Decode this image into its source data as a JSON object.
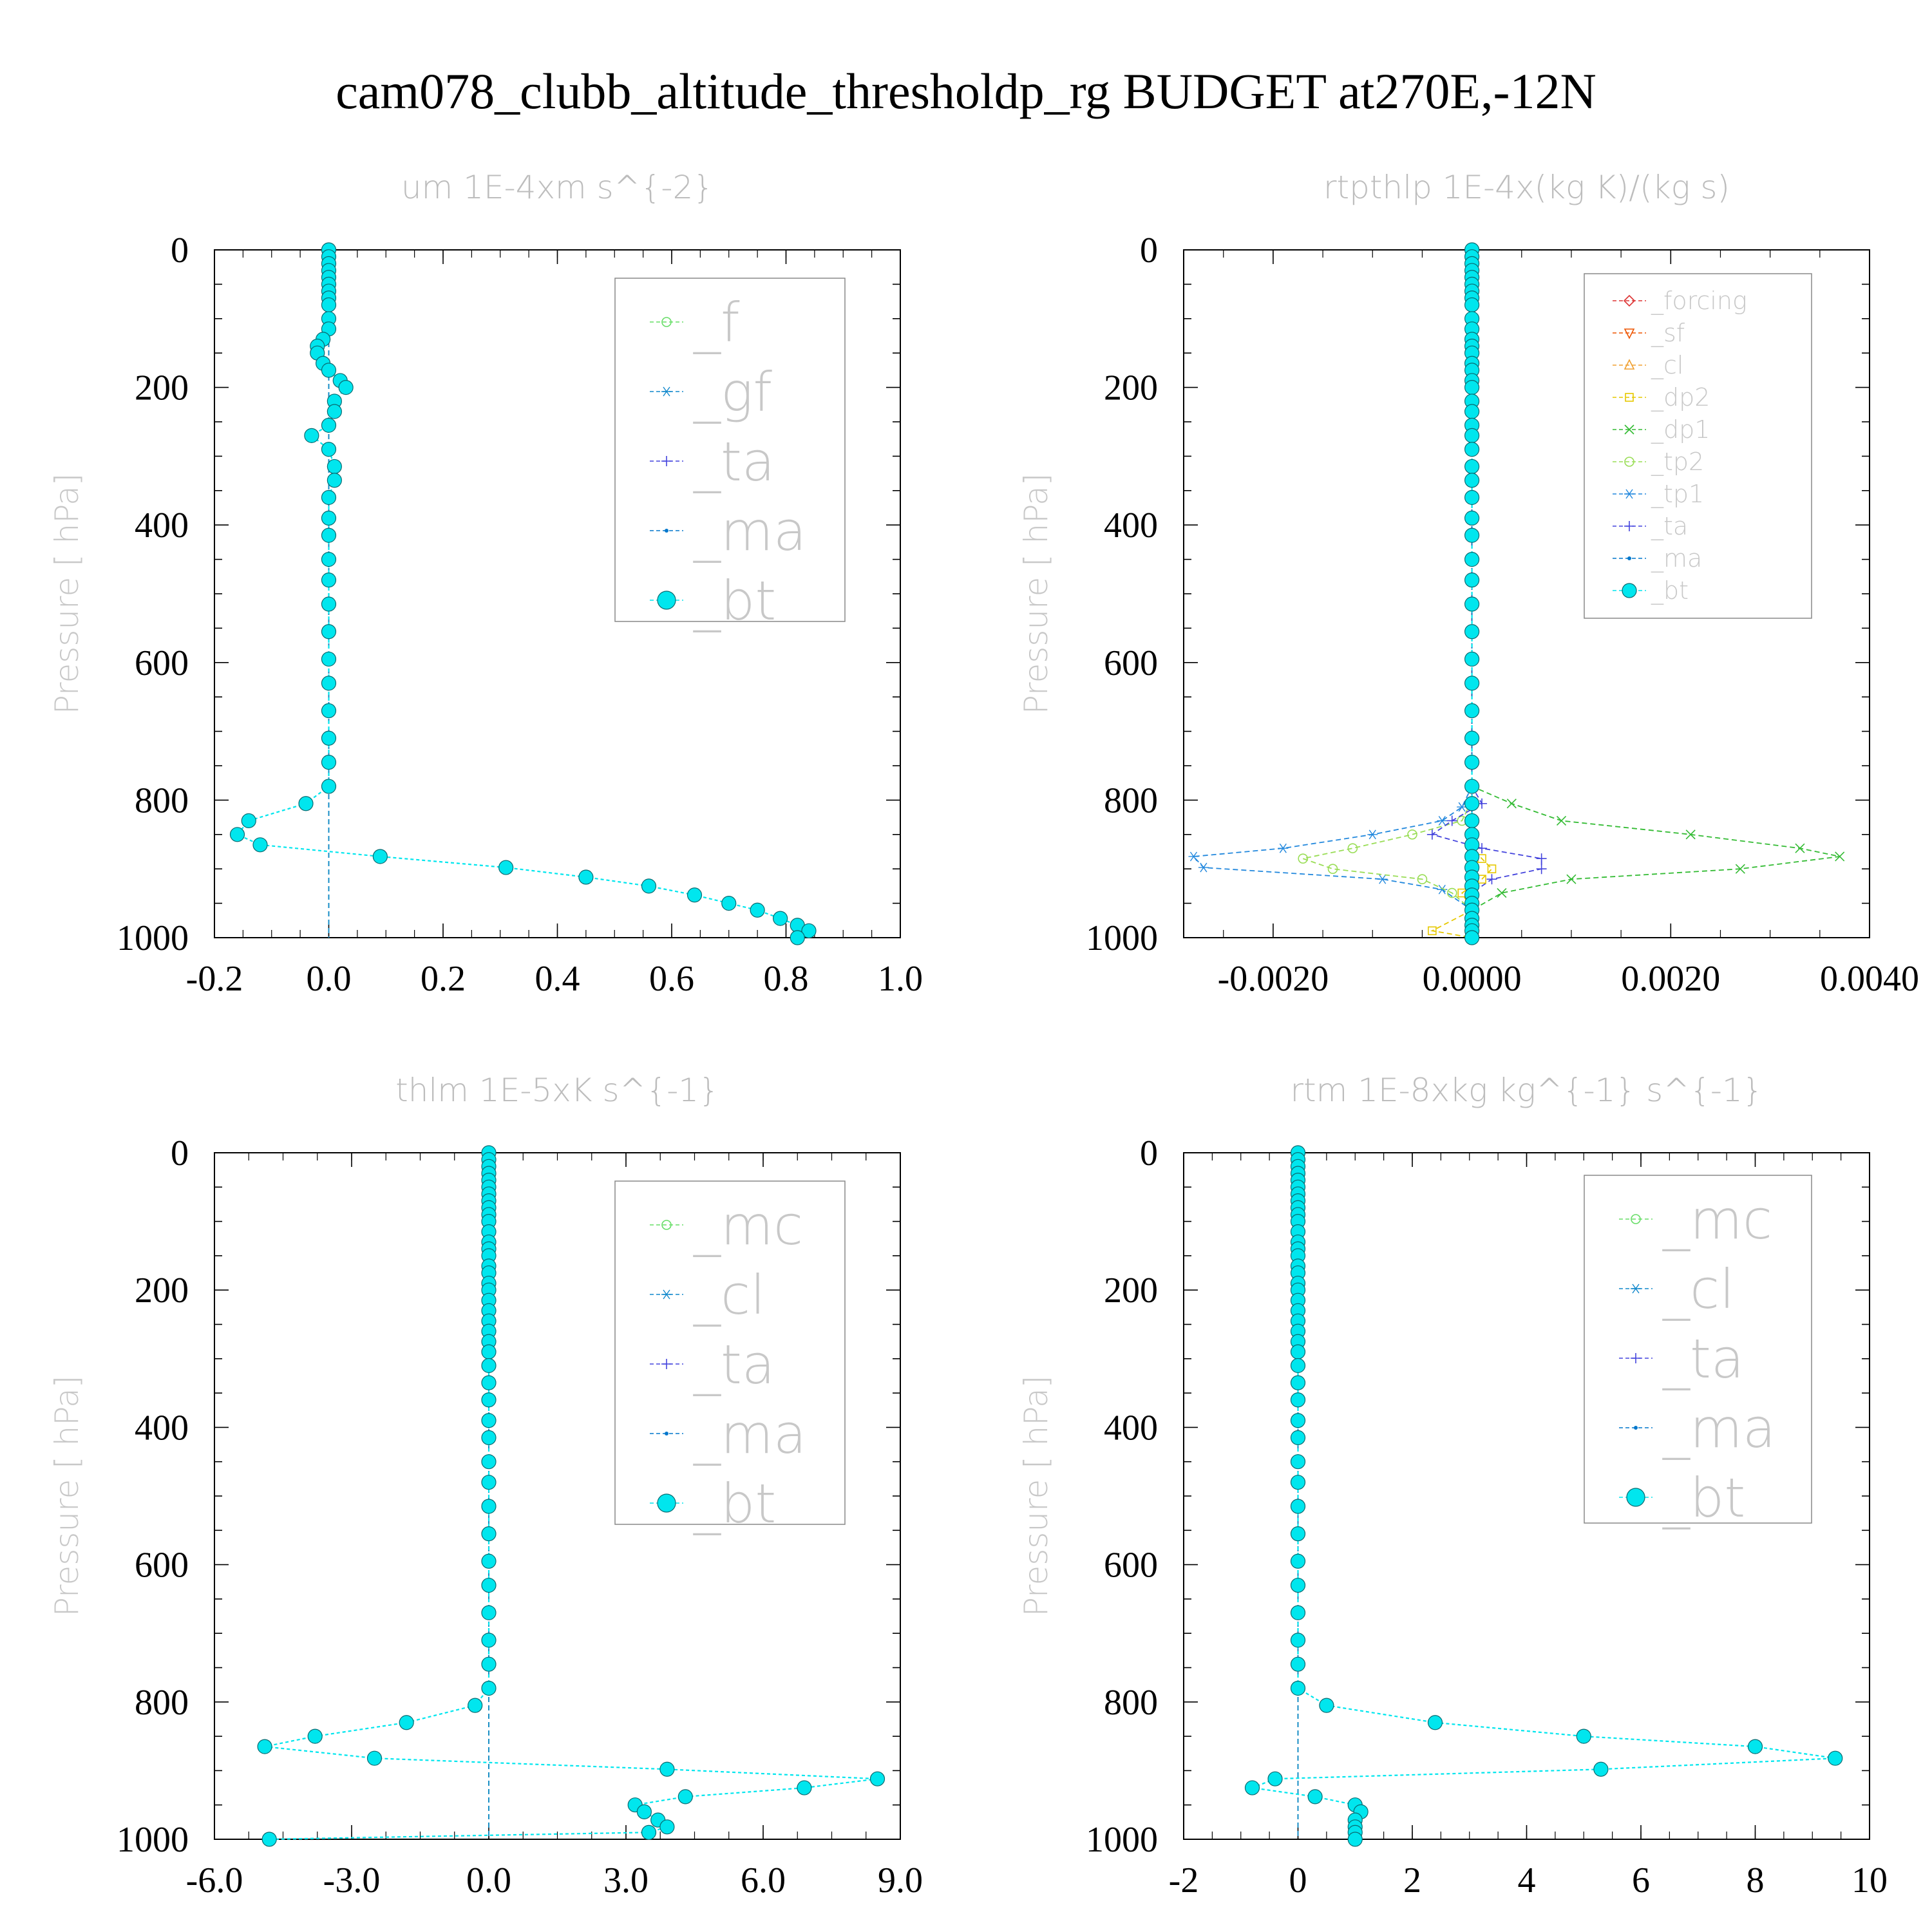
{
  "figure_title": "cam078_clubb_altitude_thresholdp_rg  BUDGET at270E,-12N",
  "colors": {
    "f": "#66dd66",
    "gf": "#1188cc",
    "ta": "#4444dd",
    "ma": "#0077cc",
    "bt": "#00e6ee",
    "mc": "#66dd66",
    "cl": "#1188cc",
    "forcing": "#dd3333",
    "sf": "#ee5500",
    "cl_small": "#f0a030",
    "dp2": "#e6c800",
    "dp1": "#33bb33",
    "tp2": "#99dd55",
    "tp1": "#2288dd"
  },
  "chart_data": [
    {
      "type": "line",
      "title": "um  1E-4xm s^{-2}",
      "ylabel": "Pressure [ hPa]",
      "xlim": [
        -0.2,
        1.0
      ],
      "ylim": [
        1000,
        0
      ],
      "xticks": [
        "-0.2",
        "0.0",
        "0.2",
        "0.4",
        "0.6",
        "0.8",
        "1.0"
      ],
      "yticks": [
        "0",
        "200",
        "400",
        "600",
        "800",
        "1000"
      ],
      "legend": [
        "_f",
        "_gf",
        "_ta",
        "_ma",
        "_bt"
      ],
      "series": [
        {
          "name": "_bt",
          "key": "bt",
          "p": [
            0,
            10,
            20,
            30,
            40,
            50,
            60,
            70,
            80,
            100,
            115,
            130,
            140,
            150,
            165,
            175,
            190,
            200,
            220,
            235,
            255,
            270,
            290,
            315,
            335,
            360,
            390,
            415,
            450,
            480,
            515,
            555,
            595,
            630,
            670,
            710,
            745,
            780,
            805,
            830,
            850,
            865,
            882,
            898,
            912,
            925,
            938,
            950,
            960,
            972,
            982,
            990,
            1000
          ],
          "x": [
            0,
            0,
            0,
            0,
            0,
            0,
            0,
            0,
            0,
            0,
            0,
            -0.01,
            -0.02,
            -0.02,
            -0.01,
            0,
            0.02,
            0.03,
            0.01,
            0.01,
            0,
            -0.03,
            0,
            0.01,
            0.01,
            0,
            0,
            0,
            0,
            0,
            0,
            0,
            0,
            0,
            0,
            0,
            0,
            0,
            -0.04,
            -0.14,
            -0.16,
            -0.12,
            0.09,
            0.31,
            0.45,
            0.56,
            0.64,
            0.7,
            0.75,
            0.79,
            0.82,
            0.84,
            0.82
          ]
        },
        {
          "name": "_ma",
          "key": "ma",
          "p": [
            0,
            990,
            1000
          ],
          "x": [
            0,
            0,
            0
          ]
        },
        {
          "name": "_ta",
          "key": "ta",
          "p": [
            0,
            990,
            1000
          ],
          "x": [
            0,
            0,
            0
          ]
        },
        {
          "name": "_f",
          "key": "f",
          "p": [
            0,
            1000
          ],
          "x": [
            0,
            0
          ]
        },
        {
          "name": "_gf",
          "key": "gf",
          "p": [
            0,
            1000
          ],
          "x": [
            0,
            0
          ]
        }
      ]
    },
    {
      "type": "line",
      "title": "rtpthlp  1E-4x(kg K)/(kg s)",
      "ylabel": "Pressure [ hPa]",
      "xlim": [
        -0.0029,
        0.004
      ],
      "ylim": [
        1000,
        0
      ],
      "xticks": [
        "-0.0020",
        "0.0000",
        "0.0020",
        "0.0040"
      ],
      "yticks": [
        "0",
        "200",
        "400",
        "600",
        "800",
        "1000"
      ],
      "legend": [
        "_forcing",
        "_sf",
        "_cl",
        "_dp2",
        "_dp1",
        "_tp2",
        "_tp1",
        "_ta",
        "_ma",
        "_bt"
      ],
      "series": [
        {
          "name": "_dp1",
          "key": "dp1",
          "p": [
            0,
            780,
            805,
            830,
            850,
            870,
            882,
            900,
            915,
            935,
            960,
            1000
          ],
          "x": [
            0,
            0,
            0.0004,
            0.0009,
            0.0022,
            0.0033,
            0.0037,
            0.0027,
            0.001,
            0.0003,
            0,
            0
          ]
        },
        {
          "name": "_tp1",
          "key": "tp1",
          "p": [
            0,
            780,
            810,
            830,
            850,
            870,
            882,
            898,
            915,
            930,
            960,
            1000
          ],
          "x": [
            0,
            0,
            -0.0001,
            -0.0003,
            -0.001,
            -0.0019,
            -0.0028,
            -0.0027,
            -0.0009,
            -0.0003,
            0,
            0
          ]
        },
        {
          "name": "_tp2",
          "key": "tp2",
          "p": [
            0,
            800,
            830,
            850,
            870,
            885,
            900,
            915,
            935,
            960,
            1000
          ],
          "x": [
            0,
            0,
            -0.0001,
            -0.0006,
            -0.0012,
            -0.0017,
            -0.0014,
            -0.0005,
            -0.0002,
            0,
            0
          ]
        },
        {
          "name": "_ta",
          "key": "ta",
          "p": [
            0,
            780,
            805,
            830,
            850,
            870,
            885,
            900,
            915,
            935,
            960,
            1000
          ],
          "x": [
            0,
            0,
            0.0001,
            -0.0002,
            -0.0004,
            0.0001,
            0.0007,
            0.0007,
            0.0002,
            0,
            0,
            0
          ]
        },
        {
          "name": "_dp2",
          "key": "dp2",
          "p": [
            0,
            870,
            885,
            900,
            915,
            935,
            960,
            990,
            1000
          ],
          "x": [
            0,
            0,
            0.0001,
            0.0002,
            0.0001,
            -0.0001,
            0,
            -0.0004,
            0
          ]
        },
        {
          "name": "_cl",
          "key": "cl_small",
          "p": [
            0,
            1000
          ],
          "x": [
            0,
            0
          ]
        },
        {
          "name": "_sf",
          "key": "sf",
          "p": [
            0,
            1000
          ],
          "x": [
            0,
            0
          ]
        },
        {
          "name": "_forcing",
          "key": "forcing",
          "p": [
            0,
            1000
          ],
          "x": [
            0,
            0
          ]
        },
        {
          "name": "_ma",
          "key": "ma",
          "p": [
            0,
            1000
          ],
          "x": [
            0,
            0
          ]
        },
        {
          "name": "_bt",
          "key": "bt",
          "p": [
            0,
            10,
            20,
            30,
            40,
            50,
            60,
            70,
            80,
            100,
            115,
            130,
            140,
            150,
            165,
            175,
            190,
            200,
            220,
            235,
            255,
            270,
            290,
            315,
            335,
            360,
            390,
            415,
            450,
            480,
            515,
            555,
            595,
            630,
            670,
            710,
            745,
            780,
            805,
            830,
            850,
            865,
            882,
            898,
            912,
            925,
            938,
            950,
            960,
            972,
            982,
            990,
            1000
          ],
          "x": [
            0,
            0,
            0,
            0,
            0,
            0,
            0,
            0,
            0,
            0,
            0,
            0,
            0,
            0,
            0,
            0,
            0,
            0,
            0,
            0,
            0,
            0,
            0,
            0,
            0,
            0,
            0,
            0,
            0,
            0,
            0,
            0,
            0,
            0,
            0,
            0,
            0,
            0,
            0,
            0,
            0,
            0,
            0,
            0,
            0,
            0,
            0,
            0,
            0,
            0,
            0,
            0,
            0
          ]
        }
      ]
    },
    {
      "type": "line",
      "title": "thlm  1E-5xK s^{-1}",
      "ylabel": "Pressure [ hPa]",
      "xlim": [
        -6.0,
        9.0
      ],
      "ylim": [
        1000,
        0
      ],
      "xticks": [
        "-6.0",
        "-3.0",
        "0.0",
        "3.0",
        "6.0",
        "9.0"
      ],
      "yticks": [
        "0",
        "200",
        "400",
        "600",
        "800",
        "1000"
      ],
      "legend": [
        "_mc",
        "_cl",
        "_ta",
        "_ma",
        "_bt"
      ],
      "series": [
        {
          "name": "_bt",
          "key": "bt",
          "p": [
            0,
            10,
            20,
            30,
            40,
            50,
            60,
            70,
            80,
            90,
            100,
            115,
            130,
            140,
            150,
            165,
            175,
            190,
            200,
            215,
            230,
            245,
            260,
            275,
            290,
            310,
            335,
            360,
            390,
            415,
            450,
            480,
            515,
            555,
            595,
            630,
            670,
            710,
            745,
            780,
            805,
            830,
            850,
            865,
            882,
            898,
            912,
            925,
            938,
            950,
            960,
            972,
            982,
            990,
            1000
          ],
          "x": [
            0,
            0,
            0,
            0,
            0,
            0,
            0,
            0,
            0,
            0,
            0,
            0,
            0,
            0,
            0,
            0,
            0,
            0,
            0,
            0,
            0,
            0,
            0,
            0,
            0,
            0,
            0,
            0,
            0,
            0,
            0,
            0,
            0,
            0,
            0,
            0,
            0,
            0,
            0,
            0,
            -0.3,
            -1.8,
            -3.8,
            -4.9,
            -2.5,
            3.9,
            8.5,
            6.9,
            4.3,
            3.2,
            3.4,
            3.7,
            3.9,
            3.5,
            -4.8
          ]
        },
        {
          "name": "_ma",
          "key": "ma",
          "p": [
            0,
            990,
            1000
          ],
          "x": [
            0,
            0,
            0
          ]
        },
        {
          "name": "_ta",
          "key": "ta",
          "p": [
            0,
            990,
            1000
          ],
          "x": [
            0,
            0,
            0
          ]
        },
        {
          "name": "_mc",
          "key": "mc",
          "p": [
            0,
            1000
          ],
          "x": [
            0,
            0
          ]
        },
        {
          "name": "_cl",
          "key": "cl",
          "p": [
            0,
            1000
          ],
          "x": [
            0,
            0
          ]
        }
      ]
    },
    {
      "type": "line",
      "title": "rtm  1E-8xkg kg^{-1} s^{-1}",
      "ylabel": "Pressure [ hPa]",
      "xlim": [
        -2,
        10
      ],
      "ylim": [
        1000,
        0
      ],
      "xticks": [
        "-2",
        "0",
        "2",
        "4",
        "6",
        "8",
        "10"
      ],
      "yticks": [
        "0",
        "200",
        "400",
        "600",
        "800",
        "1000"
      ],
      "legend": [
        "_mc",
        "_cl",
        "_ta",
        "_ma",
        "_bt"
      ],
      "series": [
        {
          "name": "_bt",
          "key": "bt",
          "p": [
            0,
            10,
            20,
            30,
            40,
            50,
            60,
            70,
            80,
            90,
            100,
            115,
            130,
            140,
            150,
            165,
            175,
            190,
            200,
            215,
            230,
            245,
            260,
            275,
            290,
            310,
            335,
            360,
            390,
            415,
            450,
            480,
            515,
            555,
            595,
            630,
            670,
            710,
            745,
            780,
            805,
            830,
            850,
            865,
            882,
            898,
            912,
            925,
            938,
            950,
            960,
            972,
            982,
            990,
            1000
          ],
          "x": [
            0,
            0,
            0,
            0,
            0,
            0,
            0,
            0,
            0,
            0,
            0,
            0,
            0,
            0,
            0,
            0,
            0,
            0,
            0,
            0,
            0,
            0,
            0,
            0,
            0,
            0,
            0,
            0,
            0,
            0,
            0,
            0,
            0,
            0,
            0,
            0,
            0,
            0,
            0,
            0,
            0.5,
            2.4,
            5.0,
            8.0,
            9.4,
            5.3,
            -0.4,
            -0.8,
            0.3,
            1.0,
            1.1,
            1.0,
            1.0,
            1.0,
            1.0
          ]
        },
        {
          "name": "_ma",
          "key": "ma",
          "p": [
            0,
            990,
            1000
          ],
          "x": [
            0,
            0,
            0
          ]
        },
        {
          "name": "_ta",
          "key": "ta",
          "p": [
            0,
            990,
            1000
          ],
          "x": [
            0,
            0,
            0
          ]
        },
        {
          "name": "_mc",
          "key": "mc",
          "p": [
            0,
            1000
          ],
          "x": [
            0,
            0
          ]
        },
        {
          "name": "_cl",
          "key": "cl",
          "p": [
            0,
            1000
          ],
          "x": [
            0,
            0
          ]
        }
      ]
    }
  ]
}
